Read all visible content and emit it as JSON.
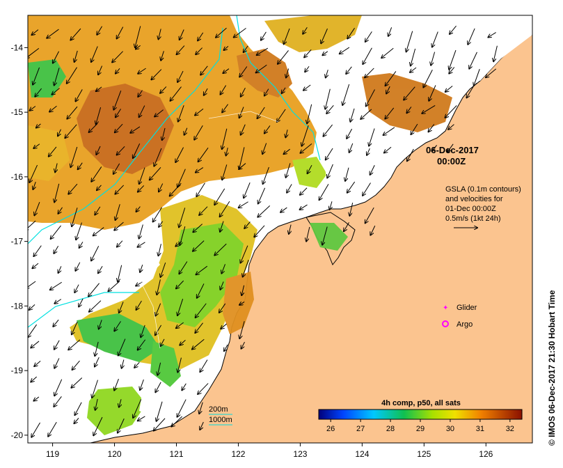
{
  "map": {
    "date_annotation": {
      "date": "06-Dec-2017",
      "time": "00:00Z"
    },
    "gsla_note": {
      "lines": [
        "GSLA (0.1m contours)",
        "and velocities for",
        "01-Dec 00:00Z",
        "0.5m/s (1kt 24h)"
      ]
    },
    "legend": {
      "glider": "Glider",
      "argo": "Argo",
      "glider_color": "#ff00ff",
      "argo_color": "#ff00ff"
    },
    "depth_legend": {
      "shallow": "200m",
      "deep": "1000m",
      "color": "#00dddd"
    },
    "colorbar": {
      "title": "4h comp, p50, all sats",
      "ticks": [
        "26",
        "27",
        "28",
        "29",
        "30",
        "31",
        "32"
      ],
      "min": 25.6,
      "max": 32.4
    },
    "x_ticks": [
      "119",
      "120",
      "121",
      "122",
      "123",
      "124",
      "125",
      "126"
    ],
    "y_ticks": [
      "-14",
      "-15",
      "-16",
      "-17",
      "-18",
      "-19",
      "-20"
    ],
    "x_range": [
      118.6,
      126.75
    ],
    "y_range": [
      -20.12,
      -13.5
    ],
    "credit": "© IMOS 06-Dec-2017 21:30 Hobart Time",
    "colors": {
      "land": "#fbc48f",
      "coastline": "#000000",
      "contour": "#00e0e0"
    }
  }
}
